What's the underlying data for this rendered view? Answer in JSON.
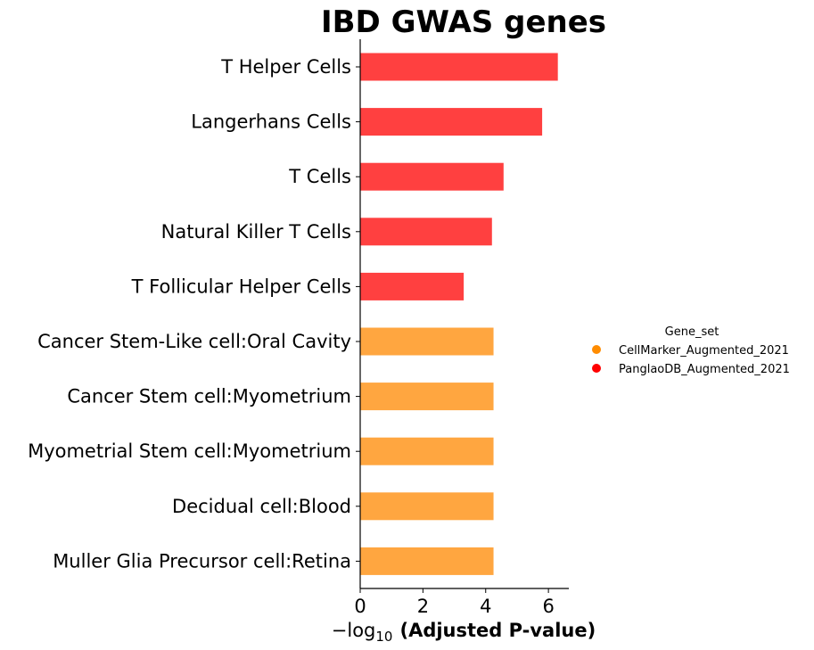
{
  "chart_data": {
    "type": "bar",
    "orientation": "horizontal",
    "title": "IBD GWAS genes",
    "xlabel_prefix": "−log",
    "xlabel_subscript": "10",
    "xlabel_main": "(Adjusted P-value)",
    "categories": [
      "T Helper Cells",
      "Langerhans Cells",
      "T Cells",
      "Natural Killer T Cells",
      "T Follicular Helper Cells",
      "Cancer Stem-Like cell:Oral Cavity",
      "Cancer Stem cell:Myometrium",
      "Myometrial Stem cell:Myometrium",
      "Decidual cell:Blood",
      "Muller Glia Precursor cell:Retina"
    ],
    "values": [
      6.3,
      5.8,
      4.57,
      4.2,
      3.3,
      4.25,
      4.25,
      4.25,
      4.25,
      4.25
    ],
    "gene_set": [
      "PanglaoDB_Augmented_2021",
      "PanglaoDB_Augmented_2021",
      "PanglaoDB_Augmented_2021",
      "PanglaoDB_Augmented_2021",
      "PanglaoDB_Augmented_2021",
      "CellMarker_Augmented_2021",
      "CellMarker_Augmented_2021",
      "CellMarker_Augmented_2021",
      "CellMarker_Augmented_2021",
      "CellMarker_Augmented_2021"
    ],
    "xlim": [
      0,
      6.65
    ],
    "xticks": [
      0,
      2,
      4,
      6
    ],
    "grid": false,
    "legend": {
      "title": "Gene_set",
      "placement": "right",
      "entries": [
        {
          "name": "CellMarker_Augmented_2021",
          "color": "#ff8c00"
        },
        {
          "name": "PanglaoDB_Augmented_2021",
          "color": "#ff0000"
        }
      ]
    },
    "bar_colors": {
      "CellMarker_Augmented_2021": "#ffa640",
      "PanglaoDB_Augmented_2021": "#ff4040"
    }
  }
}
